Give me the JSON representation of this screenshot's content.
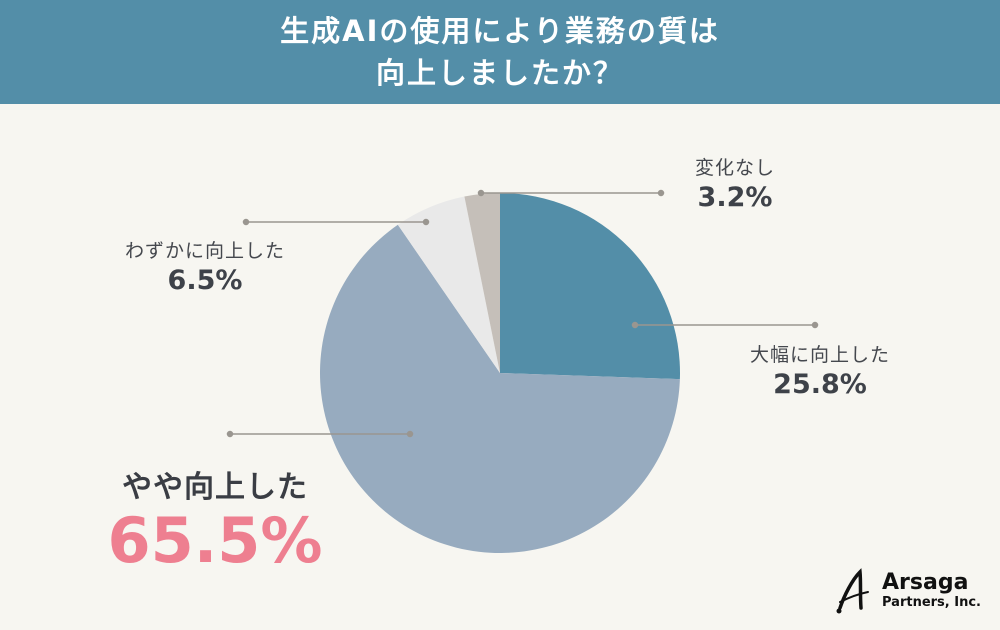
{
  "header": {
    "title_line1": "生成AIの使用により業務の質は",
    "title_line2": "向上しましたか？",
    "background": "#538ea8"
  },
  "labels": {
    "greatly": {
      "name": "大幅に向上した",
      "pct": "25.8%"
    },
    "somewhat": {
      "name": "やや向上した",
      "pct": "65.5%"
    },
    "slightly": {
      "name": "わずかに向上した",
      "pct": "6.5%"
    },
    "nochange": {
      "name": "変化なし",
      "pct": "3.2%"
    }
  },
  "logo": {
    "name": "Arsaga",
    "sub": "Partners, Inc."
  },
  "chart_data": {
    "type": "pie",
    "title": "生成AIの使用により業務の質は向上しましたか？",
    "start_angle": "12 o'clock, clockwise",
    "categories": [
      "大幅に向上した",
      "やや向上した",
      "わずかに向上した",
      "変化なし"
    ],
    "values": [
      25.8,
      65.5,
      6.5,
      3.2
    ],
    "unit": "%",
    "colors": [
      "#538ea8",
      "#97abbf",
      "#e9e9e9",
      "#c5bfb9"
    ],
    "highlight": {
      "category": "やや向上した",
      "color": "#ee7f90"
    },
    "legend": "none (direct labels with leader lines)"
  }
}
